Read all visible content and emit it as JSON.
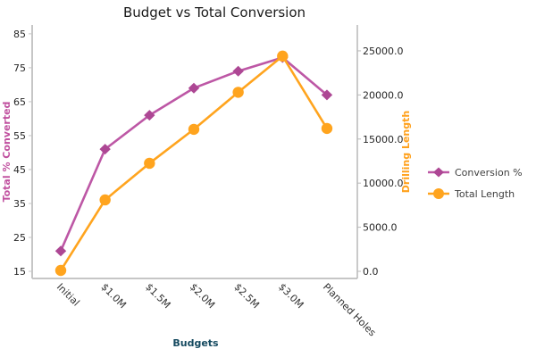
{
  "figure": {
    "background": "#ffffff",
    "axis_line_color": "#c6c6c6"
  },
  "chart_data": {
    "type": "line",
    "title": "Budget vs Total Conversion",
    "grid": false,
    "legend_position": "right",
    "x_axis": {
      "title": "Budgets",
      "title_color": "#14495f",
      "categories": [
        "Initial",
        "$1.0M",
        "$1.5M",
        "$2.0M",
        "$2.5M",
        "$3.0M",
        "Planned Holes"
      ],
      "label_rotation_deg": 45
    },
    "y_axis_left": {
      "title": "Total % Converted",
      "color": "#c0509f",
      "tick_labels": [
        "15",
        "25",
        "35",
        "45",
        "55",
        "65",
        "75",
        "85"
      ],
      "tick_values": [
        15,
        25,
        35,
        45,
        55,
        65,
        75,
        85
      ],
      "range": [
        12.9,
        87.6
      ]
    },
    "y_axis_right": {
      "title": "Drilling Length",
      "color": "#ffa11d",
      "tick_labels": [
        "0.0",
        "5000.0",
        "10000.0",
        "15000.0",
        "20000.0",
        "25000.0"
      ],
      "tick_values": [
        0,
        5000,
        10000,
        15000,
        20000,
        25000
      ],
      "range": [
        -810,
        27930
      ]
    },
    "series": [
      {
        "name": "Conversion %",
        "axis": "left",
        "marker": "diamond",
        "color": "#bd57a5",
        "marker_color": "#ad4794",
        "values": [
          21,
          51,
          61,
          69,
          74,
          78,
          67
        ]
      },
      {
        "name": "Total Length",
        "axis": "right",
        "marker": "circle",
        "color": "#ffa41e",
        "marker_color": "#ffa41e",
        "values": [
          100,
          8100,
          12250,
          16100,
          20300,
          24400,
          16200
        ]
      }
    ]
  }
}
